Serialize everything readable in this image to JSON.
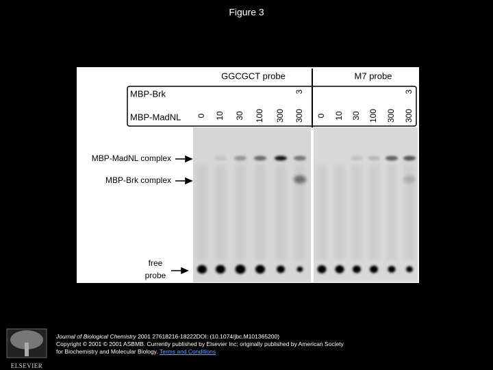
{
  "header": {
    "title": "Figure 3"
  },
  "figure": {
    "probes": [
      "GGCGCT probe",
      "M7 probe"
    ],
    "row_labels": [
      "MBP-Brk",
      "MBP-MadNL"
    ],
    "lane_madnl": [
      "0",
      "10",
      "30",
      "100",
      "300",
      "300"
    ],
    "lane_brk": "3",
    "band_labels": {
      "madnl_complex": "MBP-MadNL complex",
      "brk_complex": "MBP-Brk complex",
      "free": "free",
      "probe": "probe"
    }
  },
  "footer": {
    "journal": "Journal of Biological Chemistry",
    "citation": "2001 27618216-18222DOI: (10.1074/jbc.M101365200)",
    "copyright": "Copyright © 2001 © 2001 ASBMB. Currently published by Elsevier Inc; originally published by American Society for Biochemistry and Molecular Biology.",
    "terms": "Terms and Conditions",
    "logo": "ELSEVIER"
  }
}
